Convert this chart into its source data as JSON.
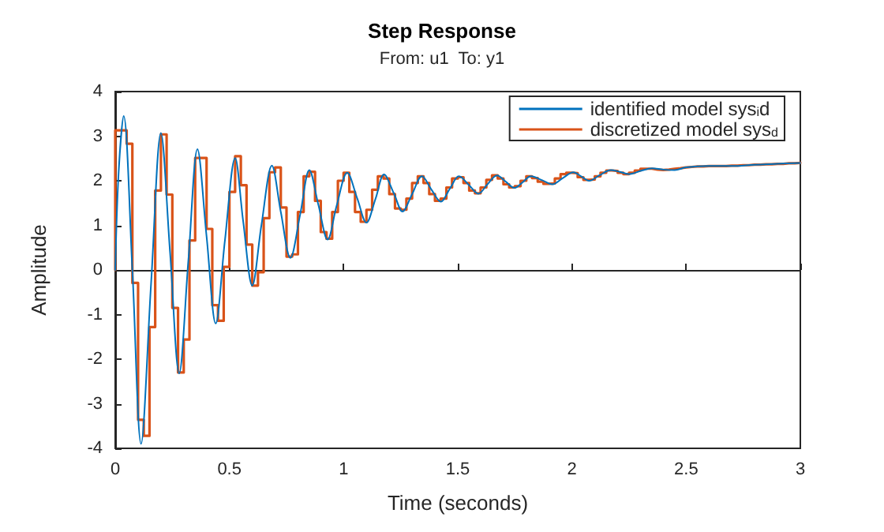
{
  "chart_data": {
    "type": "line",
    "title": "Step Response",
    "subtitle": "From: u1  To: y1",
    "xlabel": "Time (seconds)",
    "ylabel": "Amplitude",
    "xlim": [
      0,
      3
    ],
    "xticks": [
      0,
      0.5,
      1,
      1.5,
      2,
      2.5,
      3
    ],
    "ylim": [
      -4,
      4
    ],
    "yticks": [
      -4,
      -3,
      -2,
      -1,
      0,
      1,
      2,
      3,
      4
    ],
    "legend": "top right",
    "marker": "none",
    "line_style": "solid",
    "series": [
      {
        "name": "identified model sys$_{i}$d",
        "color": "#0072bd",
        "x": [
          0,
          0.015,
          0.037,
          0.075,
          0.113,
          0.157,
          0.2,
          0.24,
          0.28,
          0.32,
          0.36,
          0.4,
          0.44,
          0.48,
          0.525,
          0.56,
          0.6,
          0.64,
          0.686,
          0.725,
          0.767,
          0.81,
          0.85,
          0.89,
          0.93,
          0.97,
          1.016,
          1.06,
          1.1,
          1.14,
          1.177,
          1.22,
          1.258,
          1.3,
          1.343,
          1.385,
          1.426,
          1.465,
          1.505,
          1.55,
          1.59,
          1.63,
          1.672,
          1.71,
          1.748,
          1.785,
          1.82,
          1.87,
          1.914,
          1.96,
          2.006,
          2.04,
          2.075,
          2.12,
          2.17,
          2.21,
          2.25,
          2.3,
          2.35,
          2.4,
          2.45,
          2.5,
          2.6,
          2.7,
          2.8,
          2.9,
          3
        ],
        "values": [
          0,
          2.2,
          3.45,
          0,
          -3.9,
          -0.3,
          3.07,
          0.4,
          -2.32,
          0.2,
          2.71,
          0.75,
          -1.2,
          0.65,
          2.51,
          1.1,
          -0.35,
          1,
          2.34,
          1.3,
          0.27,
          1.25,
          2.24,
          1.45,
          0.68,
          1.45,
          2.18,
          1.6,
          1.06,
          1.6,
          2.14,
          1.72,
          1.31,
          1.7,
          2.1,
          1.8,
          1.53,
          1.82,
          2.1,
          1.9,
          1.71,
          1.92,
          2.12,
          1.98,
          1.84,
          1.97,
          2.1,
          2.01,
          1.92,
          2.06,
          2.19,
          2.1,
          2,
          2.12,
          2.24,
          2.2,
          2.15,
          2.22,
          2.28,
          2.25,
          2.24,
          2.3,
          2.33,
          2.33,
          2.36,
          2.38,
          2.4
        ]
      },
      {
        "name": "discretized model sys$_{d}$",
        "color": "#d95319",
        "type": "step",
        "x": [
          0,
          0,
          0.025,
          0.05,
          0.075,
          0.1,
          0.125,
          0.15,
          0.175,
          0.2,
          0.225,
          0.25,
          0.275,
          0.3,
          0.325,
          0.35,
          0.375,
          0.4,
          0.425,
          0.45,
          0.475,
          0.5,
          0.525,
          0.55,
          0.575,
          0.6,
          0.625,
          0.65,
          0.675,
          0.7,
          0.725,
          0.75,
          0.775,
          0.8,
          0.825,
          0.85,
          0.875,
          0.9,
          0.925,
          0.95,
          0.975,
          1,
          1.025,
          1.05,
          1.075,
          1.1,
          1.125,
          1.15,
          1.175,
          1.2,
          1.225,
          1.25,
          1.275,
          1.3,
          1.325,
          1.35,
          1.375,
          1.4,
          1.425,
          1.45,
          1.475,
          1.5,
          1.525,
          1.55,
          1.575,
          1.6,
          1.625,
          1.65,
          1.675,
          1.7,
          1.725,
          1.75,
          1.775,
          1.8,
          1.825,
          1.85,
          1.875,
          1.9,
          1.925,
          1.95,
          1.975,
          2,
          2.025,
          2.05,
          2.075,
          2.1,
          2.125,
          2.15,
          2.175,
          2.2,
          2.225,
          2.25,
          2.275,
          2.3,
          2.325,
          2.35,
          2.375,
          2.4,
          2.425,
          2.45,
          2.475,
          2.5,
          2.525,
          2.55,
          2.575,
          2.6,
          2.625,
          2.65,
          2.675,
          2.7,
          2.725,
          2.75,
          2.775,
          2.8,
          2.825,
          2.85,
          2.875,
          2.9,
          2.925,
          2.95,
          2.975,
          3
        ],
        "values": [
          0,
          3.13,
          3.13,
          2.83,
          -0.29,
          -3.36,
          -3.72,
          -1.28,
          1.78,
          3.04,
          1.69,
          -0.85,
          -2.3,
          -1.56,
          0.66,
          2.51,
          2.51,
          0.92,
          -0.79,
          -1.14,
          0.07,
          1.75,
          2.55,
          1.9,
          0.57,
          -0.35,
          -0.05,
          1.16,
          2.19,
          2.3,
          1.4,
          0.3,
          0.35,
          1.3,
          2.1,
          2.2,
          1.55,
          0.85,
          0.7,
          1.3,
          2,
          2.18,
          1.75,
          1.3,
          1.08,
          1.35,
          1.8,
          2.1,
          2.05,
          1.7,
          1.38,
          1.35,
          1.6,
          1.95,
          2.1,
          1.95,
          1.7,
          1.55,
          1.6,
          1.85,
          2.05,
          2.08,
          1.95,
          1.78,
          1.72,
          1.85,
          2.02,
          2.12,
          2.05,
          1.92,
          1.85,
          1.88,
          2,
          2.1,
          2.06,
          1.98,
          1.93,
          1.94,
          2.05,
          2.15,
          2.18,
          2.17,
          2.08,
          2.02,
          2.03,
          2.1,
          2.18,
          2.23,
          2.22,
          2.18,
          2.15,
          2.18,
          2.23,
          2.27,
          2.27,
          2.25,
          2.24,
          2.25,
          2.27,
          2.28,
          2.3,
          2.31,
          2.32,
          2.32,
          2.33,
          2.33,
          2.33,
          2.33,
          2.34,
          2.34,
          2.35,
          2.35,
          2.36,
          2.36,
          2.37,
          2.37,
          2.38,
          2.38,
          2.39,
          2.39,
          2.4,
          2.4
        ]
      }
    ]
  }
}
